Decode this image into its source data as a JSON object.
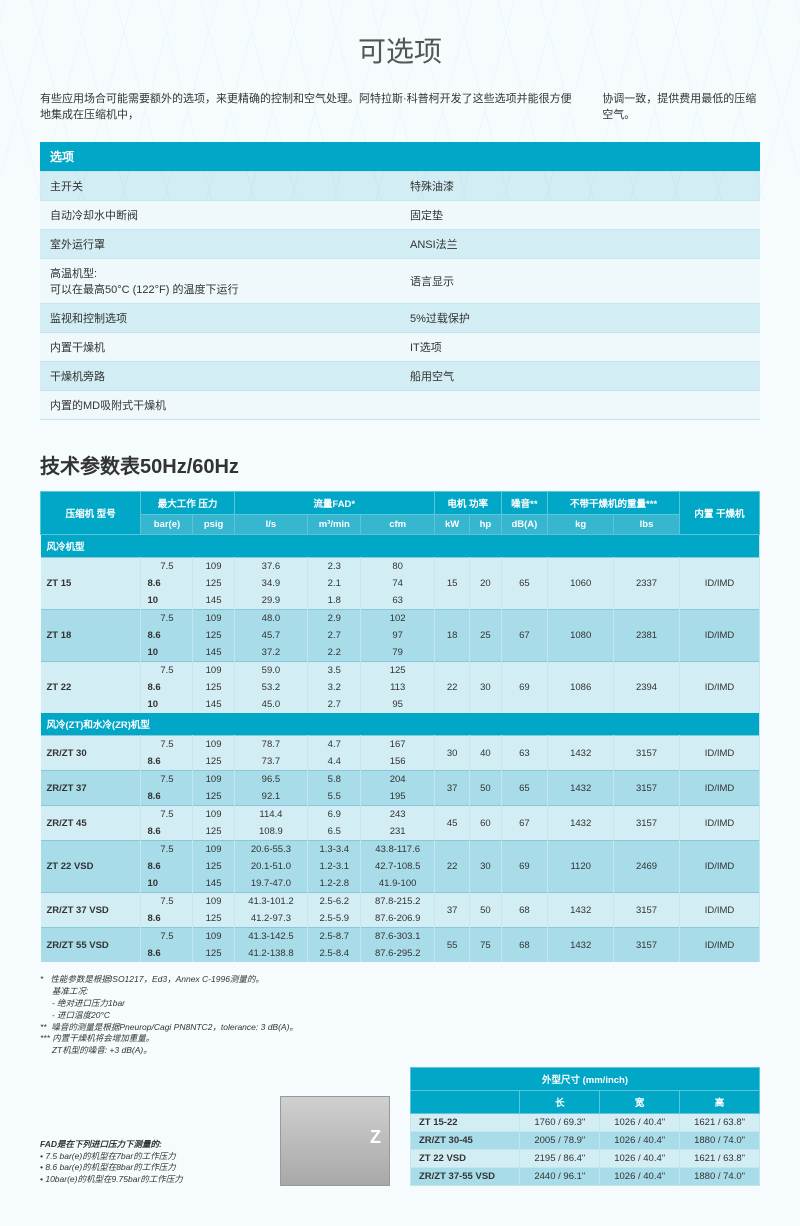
{
  "title": "可选项",
  "intro": {
    "left": "有些应用场合可能需要额外的选项，来更精确的控制和空气处理。阿特拉斯·科普柯开发了这些选项并能很方便地集成在压缩机中，",
    "right": "协调一致，提供费用最低的压缩空气。"
  },
  "options_header": "选项",
  "options_rows": [
    {
      "l": "主开关",
      "r": "特殊油漆"
    },
    {
      "l": "自动冷却水中断阀",
      "r": "固定垫"
    },
    {
      "l": "室外运行罩",
      "r": "ANSI法兰"
    },
    {
      "l": "高温机型:\n可以在最高50°C (122°F) 的温度下运行",
      "r": "语言显示"
    },
    {
      "l": "监视和控制选项",
      "r": "5%过载保护"
    },
    {
      "l": "内置干燥机",
      "r": "IT选项"
    },
    {
      "l": "干燥机旁路",
      "r": "船用空气"
    },
    {
      "l": "内置的MD吸附式干燥机",
      "r": ""
    }
  ],
  "section_title": "技术参数表50Hz/60Hz",
  "spec_headers": {
    "compressor": "压缩机\n型号",
    "max_pressure": "最大工作\n压力",
    "fad": "流量FAD*",
    "motor": "电机\n功率",
    "noise": "噪音**",
    "weight": "不带干燥机的重量***",
    "dryer": "内置\n干燥机",
    "bar": "bar(e)",
    "psig": "psig",
    "ls": "l/s",
    "m3min": "m³/min",
    "cfm": "cfm",
    "kw": "kW",
    "hp": "hp",
    "dba": "dB(A)",
    "kg": "kg",
    "lbs": "lbs"
  },
  "spec_categories": [
    {
      "name": "风冷机型",
      "models": [
        {
          "model": "ZT 15",
          "rows": [
            {
              "bar": "7.5",
              "psig": "109",
              "ls": "37.6",
              "m3": "2.3",
              "cfm": "80"
            },
            {
              "bar": "8.6",
              "psig": "125",
              "ls": "34.9",
              "m3": "2.1",
              "cfm": "74"
            },
            {
              "bar": "10",
              "psig": "145",
              "ls": "29.9",
              "m3": "1.8",
              "cfm": "63"
            }
          ],
          "kw": "15",
          "hp": "20",
          "db": "65",
          "kg": "1060",
          "lbs": "2337",
          "dryer": "ID/IMD"
        },
        {
          "model": "ZT 18",
          "rows": [
            {
              "bar": "7.5",
              "psig": "109",
              "ls": "48.0",
              "m3": "2.9",
              "cfm": "102"
            },
            {
              "bar": "8.6",
              "psig": "125",
              "ls": "45.7",
              "m3": "2.7",
              "cfm": "97"
            },
            {
              "bar": "10",
              "psig": "145",
              "ls": "37.2",
              "m3": "2.2",
              "cfm": "79"
            }
          ],
          "kw": "18",
          "hp": "25",
          "db": "67",
          "kg": "1080",
          "lbs": "2381",
          "dryer": "ID/IMD"
        },
        {
          "model": "ZT 22",
          "rows": [
            {
              "bar": "7.5",
              "psig": "109",
              "ls": "59.0",
              "m3": "3.5",
              "cfm": "125"
            },
            {
              "bar": "8.6",
              "psig": "125",
              "ls": "53.2",
              "m3": "3.2",
              "cfm": "113"
            },
            {
              "bar": "10",
              "psig": "145",
              "ls": "45.0",
              "m3": "2.7",
              "cfm": "95"
            }
          ],
          "kw": "22",
          "hp": "30",
          "db": "69",
          "kg": "1086",
          "lbs": "2394",
          "dryer": "ID/IMD"
        }
      ]
    },
    {
      "name": "风冷(ZT)和水冷(ZR)机型",
      "models": [
        {
          "model": "ZR/ZT 30",
          "rows": [
            {
              "bar": "7.5",
              "psig": "109",
              "ls": "78.7",
              "m3": "4.7",
              "cfm": "167"
            },
            {
              "bar": "8.6",
              "psig": "125",
              "ls": "73.7",
              "m3": "4.4",
              "cfm": "156"
            }
          ],
          "kw": "30",
          "hp": "40",
          "db": "63",
          "kg": "1432",
          "lbs": "3157",
          "dryer": "ID/IMD"
        },
        {
          "model": "ZR/ZT 37",
          "rows": [
            {
              "bar": "7.5",
              "psig": "109",
              "ls": "96.5",
              "m3": "5.8",
              "cfm": "204"
            },
            {
              "bar": "8.6",
              "psig": "125",
              "ls": "92.1",
              "m3": "5.5",
              "cfm": "195"
            }
          ],
          "kw": "37",
          "hp": "50",
          "db": "65",
          "kg": "1432",
          "lbs": "3157",
          "dryer": "ID/IMD"
        },
        {
          "model": "ZR/ZT 45",
          "rows": [
            {
              "bar": "7.5",
              "psig": "109",
              "ls": "114.4",
              "m3": "6.9",
              "cfm": "243"
            },
            {
              "bar": "8.6",
              "psig": "125",
              "ls": "108.9",
              "m3": "6.5",
              "cfm": "231"
            }
          ],
          "kw": "45",
          "hp": "60",
          "db": "67",
          "kg": "1432",
          "lbs": "3157",
          "dryer": "ID/IMD"
        },
        {
          "model": "ZT 22 VSD",
          "rows": [
            {
              "bar": "7.5",
              "psig": "109",
              "ls": "20.6-55.3",
              "m3": "1.3-3.4",
              "cfm": "43.8-117.6"
            },
            {
              "bar": "8.6",
              "psig": "125",
              "ls": "20.1-51.0",
              "m3": "1.2-3.1",
              "cfm": "42.7-108.5"
            },
            {
              "bar": "10",
              "psig": "145",
              "ls": "19.7-47.0",
              "m3": "1.2-2.8",
              "cfm": "41.9-100"
            }
          ],
          "kw": "22",
          "hp": "30",
          "db": "69",
          "kg": "1120",
          "lbs": "2469",
          "dryer": "ID/IMD"
        },
        {
          "model": "ZR/ZT 37 VSD",
          "rows": [
            {
              "bar": "7.5",
              "psig": "109",
              "ls": "41.3-101.2",
              "m3": "2.5-6.2",
              "cfm": "87.8-215.2"
            },
            {
              "bar": "8.6",
              "psig": "125",
              "ls": "41.2-97.3",
              "m3": "2.5-5.9",
              "cfm": "87.6-206.9"
            }
          ],
          "kw": "37",
          "hp": "50",
          "db": "68",
          "kg": "1432",
          "lbs": "3157",
          "dryer": "ID/IMD"
        },
        {
          "model": "ZR/ZT 55 VSD",
          "rows": [
            {
              "bar": "7.5",
              "psig": "109",
              "ls": "41.3-142.5",
              "m3": "2.5-8.7",
              "cfm": "87.6-303.1"
            },
            {
              "bar": "8.6",
              "psig": "125",
              "ls": "41.2-138.8",
              "m3": "2.5-8.4",
              "cfm": "87.6-295.2"
            }
          ],
          "kw": "55",
          "hp": "75",
          "db": "68",
          "kg": "1432",
          "lbs": "3157",
          "dryer": "ID/IMD"
        }
      ]
    }
  ],
  "footnotes": {
    "star1_intro": "性能参数是根据ISO1217，Ed3，Annex C-1996测量的。",
    "star1_sub1": "基准工况:",
    "star1_sub2": "- 绝对进口压力1bar",
    "star1_sub3": "- 进口温度20°C",
    "star2": "噪音的测量是根据Pneurop/Cagi PN8NTC2，tolerance: 3 dB(A)。",
    "star3": "内置干燥机将会增加重量。",
    "star3b": "ZT机型的噪音: +3 dB(A)。",
    "fad_title": "FAD是在下列进口压力下测量的:",
    "fad_1": "7.5 bar(e)的机型在7bar的工作压力",
    "fad_2": "8.6 bar(e)的机型在8bar的工作压力",
    "fad_3": "10bar(e)的机型在9.75bar的工作压力"
  },
  "dim_header": "外型尺寸 (mm/inch)",
  "dim_cols": {
    "l": "长",
    "w": "宽",
    "h": "高"
  },
  "dim_rows": [
    {
      "m": "ZT 15-22",
      "l": "1760 / 69.3\"",
      "w": "1026 / 40.4\"",
      "h": "1621 / 63.8\""
    },
    {
      "m": "ZR/ZT 30-45",
      "l": "2005 / 78.9\"",
      "w": "1026 / 40.4\"",
      "h": "1880 / 74.0\""
    },
    {
      "m": "ZT 22 VSD",
      "l": "2195 / 86.4\"",
      "w": "1026 / 40.4\"",
      "h": "1621 / 63.8\""
    },
    {
      "m": "ZR/ZT 37-55 VSD",
      "l": "2440 / 96.1\"",
      "w": "1026 / 40.4\"",
      "h": "1880 / 74.0\""
    }
  ],
  "colors": {
    "header_bg": "#00a7c7",
    "row_light": "#d2edf3",
    "row_dark": "#a8dce8",
    "page_bg": "#f6fcfe"
  }
}
